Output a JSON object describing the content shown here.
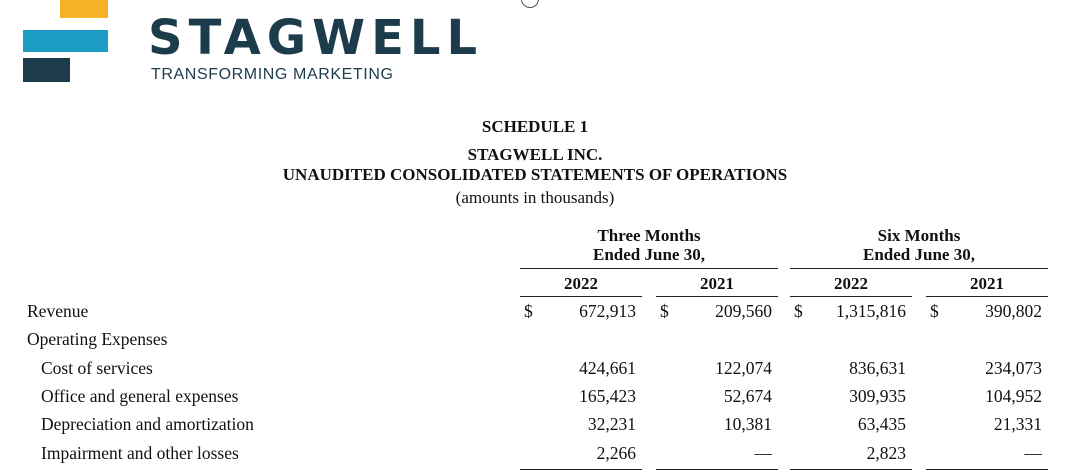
{
  "logo": {
    "wordmark": "STAGWELL",
    "tagline": "TRANSFORMING MARKETING",
    "colors": {
      "orange": "#f6b328",
      "blue": "#1e9dc4",
      "navy": "#1c3c4c"
    }
  },
  "header": {
    "schedule": "SCHEDULE 1",
    "company": "STAGWELL INC.",
    "statement": "UNAUDITED CONSOLIDATED STATEMENTS OF OPERATIONS",
    "units": "(amounts in thousands)"
  },
  "columns": {
    "groups": [
      {
        "line1": "Three Months",
        "line2": "Ended June 30,"
      },
      {
        "line1": "Six Months",
        "line2": "Ended June 30,"
      }
    ],
    "years": [
      "2022",
      "2021",
      "2022",
      "2021"
    ]
  },
  "currency_symbol": "$",
  "rows": [
    {
      "label": "Revenue",
      "values": [
        "672,913",
        "209,560",
        "1,315,816",
        "390,802"
      ]
    },
    {
      "label": "Operating Expenses",
      "values": [
        "",
        "",
        "",
        ""
      ]
    },
    {
      "label": "Cost of services",
      "values": [
        "424,661",
        "122,074",
        "836,631",
        "234,073"
      ]
    },
    {
      "label": "Office and general expenses",
      "values": [
        "165,423",
        "52,674",
        "309,935",
        "104,952"
      ]
    },
    {
      "label": "Depreciation and amortization",
      "values": [
        "32,231",
        "10,381",
        "63,435",
        "21,331"
      ]
    },
    {
      "label": "Impairment and other losses",
      "values": [
        "2,266",
        "—",
        "2,823",
        "—"
      ]
    }
  ]
}
